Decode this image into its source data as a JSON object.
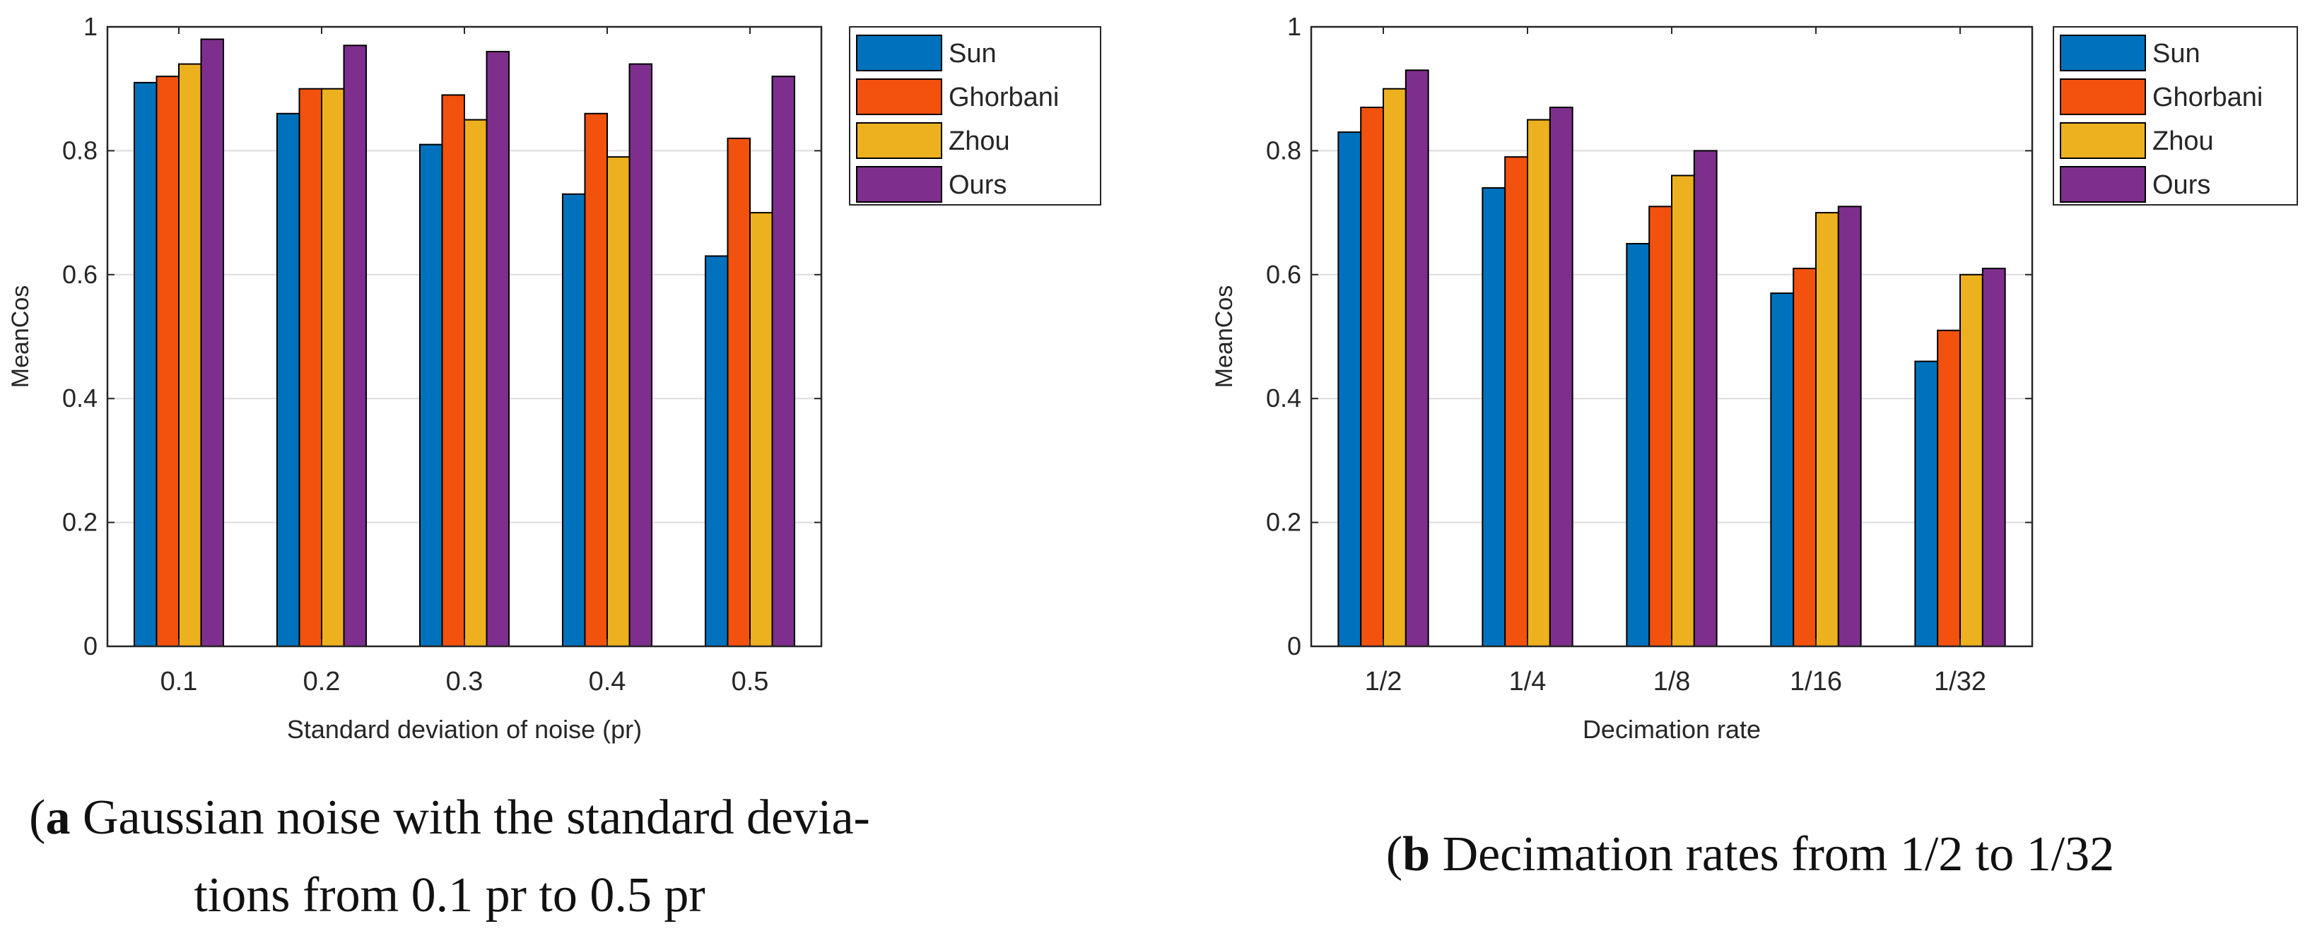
{
  "colors": {
    "Sun": "#0072BD",
    "Ghorbani": "#F2520D",
    "Zhou": "#EDB120",
    "Ours": "#7E2F8E",
    "grid": "#dcdcdc",
    "axis": "#262626"
  },
  "chart_data": [
    {
      "type": "bar",
      "id": "a",
      "title": "",
      "xlabel": "Standard deviation of noise (pr)",
      "ylabel": "MeanCos",
      "ylim": [
        0,
        1
      ],
      "yticks": [
        0,
        0.2,
        0.4,
        0.6,
        0.8,
        1
      ],
      "ytick_labels": [
        "0",
        "0.2",
        "0.4",
        "0.6",
        "0.8",
        "1"
      ],
      "grid": true,
      "legend_position": "outside-top-right",
      "categories": [
        "0.1",
        "0.2",
        "0.3",
        "0.4",
        "0.5"
      ],
      "series": [
        {
          "name": "Sun",
          "values": [
            0.91,
            0.86,
            0.81,
            0.73,
            0.63
          ]
        },
        {
          "name": "Ghorbani",
          "values": [
            0.92,
            0.9,
            0.89,
            0.86,
            0.82
          ]
        },
        {
          "name": "Zhou",
          "values": [
            0.94,
            0.9,
            0.85,
            0.79,
            0.7
          ]
        },
        {
          "name": "Ours",
          "values": [
            0.98,
            0.97,
            0.96,
            0.94,
            0.92
          ]
        }
      ],
      "caption": {
        "label": "a",
        "line1": " Gaussian noise with the standard devia-",
        "line2": "tions from 0.1 pr to 0.5 pr"
      }
    },
    {
      "type": "bar",
      "id": "b",
      "title": "",
      "xlabel": "Decimation rate",
      "ylabel": "MeanCos",
      "ylim": [
        0,
        1
      ],
      "yticks": [
        0,
        0.2,
        0.4,
        0.6,
        0.8,
        1
      ],
      "ytick_labels": [
        "0",
        "0.2",
        "0.4",
        "0.6",
        "0.8",
        "1"
      ],
      "grid": true,
      "legend_position": "top-right",
      "categories": [
        "1/2",
        "1/4",
        "1/8",
        "1/16",
        "1/32"
      ],
      "series": [
        {
          "name": "Sun",
          "values": [
            0.83,
            0.74,
            0.65,
            0.57,
            0.46
          ]
        },
        {
          "name": "Ghorbani",
          "values": [
            0.87,
            0.79,
            0.71,
            0.61,
            0.51
          ]
        },
        {
          "name": "Zhou",
          "values": [
            0.9,
            0.85,
            0.76,
            0.7,
            0.6
          ]
        },
        {
          "name": "Ours",
          "values": [
            0.93,
            0.87,
            0.8,
            0.71,
            0.61
          ]
        }
      ],
      "caption": {
        "label": "b",
        "line1": " Decimation rates from 1/2 to 1/32",
        "line2": ""
      }
    }
  ]
}
